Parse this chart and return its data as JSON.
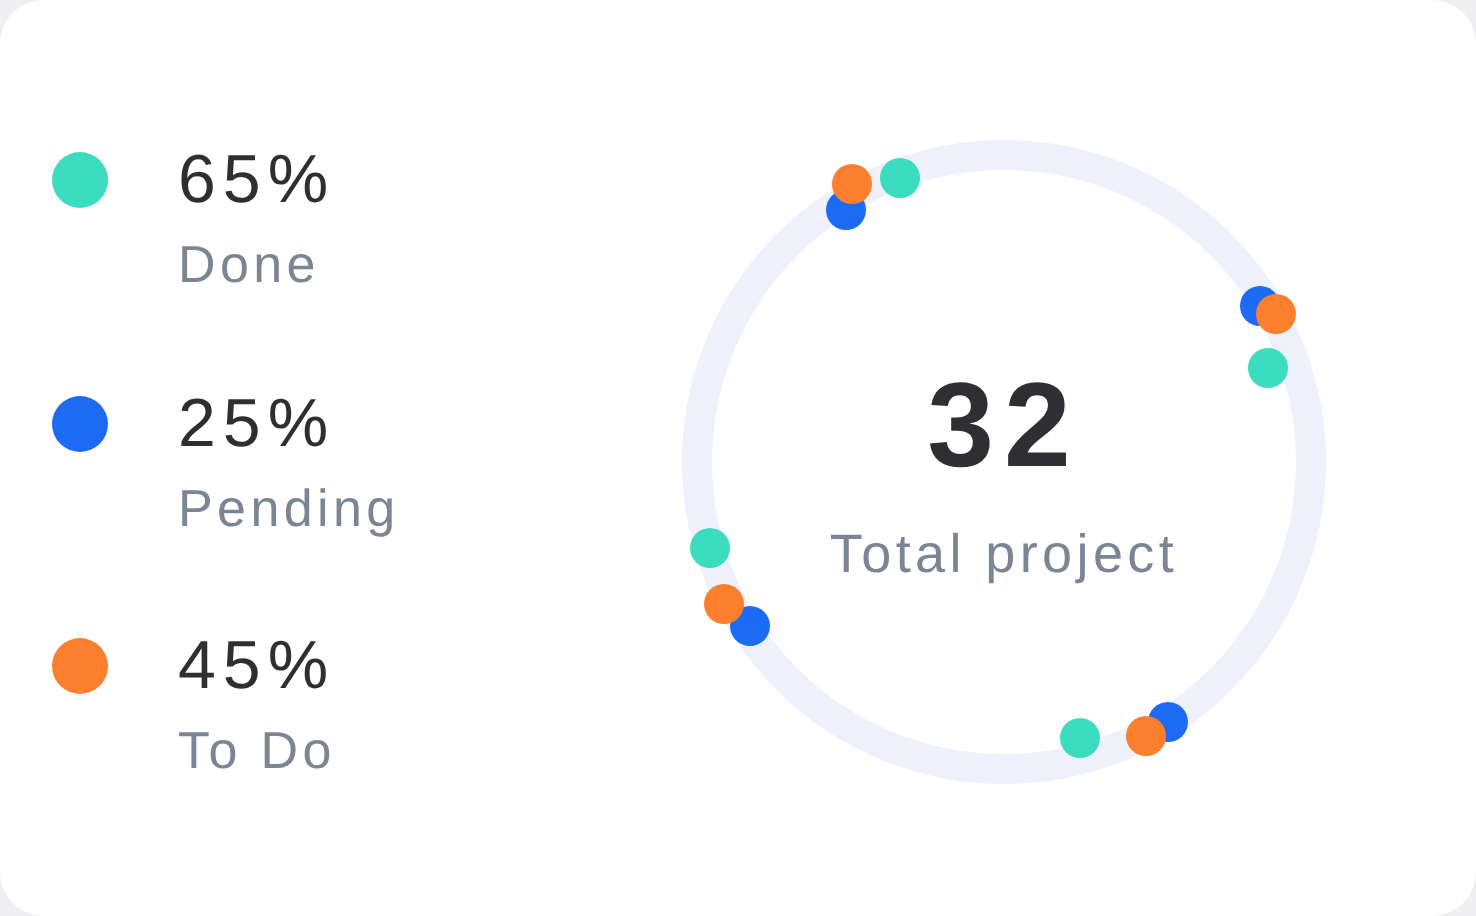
{
  "chart_data": {
    "type": "other",
    "categories": [
      "Done",
      "Pending",
      "To Do"
    ],
    "values": [
      65,
      25,
      45
    ],
    "value_labels": [
      "65%",
      "25%",
      "45%"
    ],
    "colors": [
      "#3bdcbf",
      "#1d6af5",
      "#fc7f2e"
    ],
    "annotations": [
      "32",
      "Total project"
    ]
  }
}
